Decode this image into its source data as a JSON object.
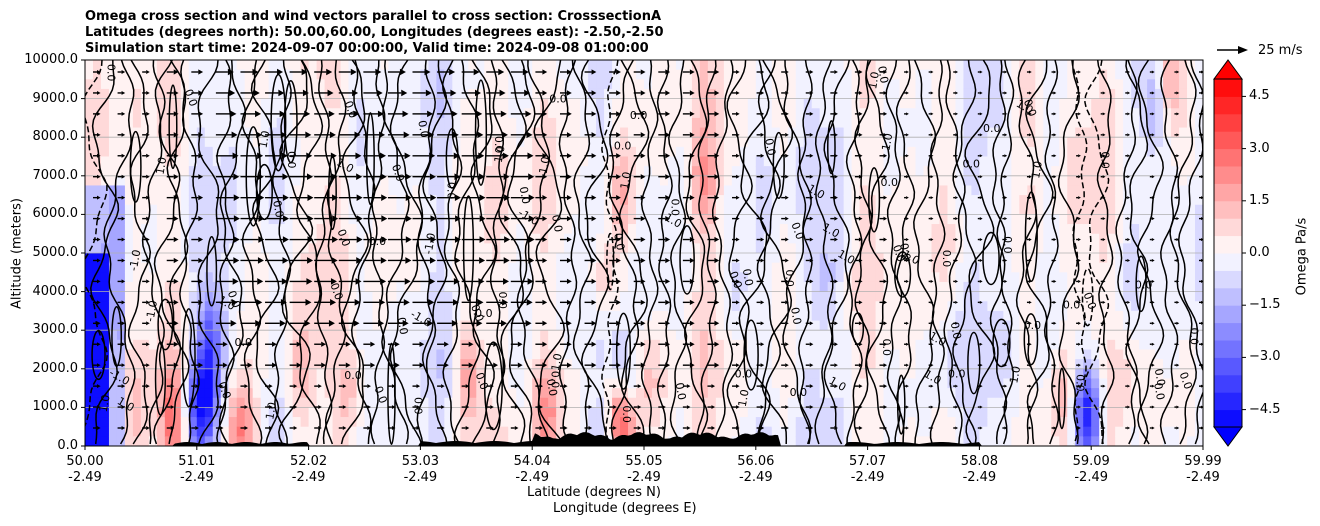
{
  "title_lines": [
    "Omega cross section and wind vectors parallel to cross section: CrosssectionA",
    "Latitudes (degrees north): 50.00,60.00, Longitudes (degrees east): -2.50,-2.50",
    "Simulation start time: 2024-09-07 00:00:00, Valid time: 2024-09-08 01:00:00"
  ],
  "chart_data": {
    "type": "heatmap",
    "title": "Omega cross section and wind vectors parallel to cross section: CrosssectionA",
    "ylabel": "Altitude (meters)",
    "xlabel": "Latitude (degrees N)",
    "xlabel2": "Longitude (degrees E)",
    "ylim": [
      0,
      10000
    ],
    "yticks": [
      "0.0",
      "1000.0",
      "2000.0",
      "3000.0",
      "4000.0",
      "5000.0",
      "6000.0",
      "7000.0",
      "8000.0",
      "9000.0",
      "10000.0"
    ],
    "xticks_lat": [
      "50.00",
      "51.01",
      "52.02",
      "53.03",
      "54.04",
      "55.05",
      "56.06",
      "57.07",
      "58.08",
      "59.09",
      "59.99"
    ],
    "xticks_lon": [
      "-2.49",
      "-2.49",
      "-2.49",
      "-2.49",
      "-2.49",
      "-2.49",
      "-2.49",
      "-2.49",
      "-2.49",
      "-2.49",
      "-2.49"
    ],
    "colorbar": {
      "label": "Omega Pa/s",
      "range": [
        -5,
        5
      ],
      "ticks": [
        "4.5",
        "3.0",
        "1.5",
        "0.0",
        "−1.5",
        "−3.0",
        "−4.5"
      ],
      "colormap": "bwr"
    },
    "quiver_key": "25 m/s",
    "contour_labels": [
      "0.0",
      "1.0",
      "-1.0"
    ],
    "grid": true
  },
  "colors": {
    "positive": "#ff0000",
    "negative": "#0000ff",
    "neutral": "#ffffff",
    "terrain": "#000000"
  }
}
